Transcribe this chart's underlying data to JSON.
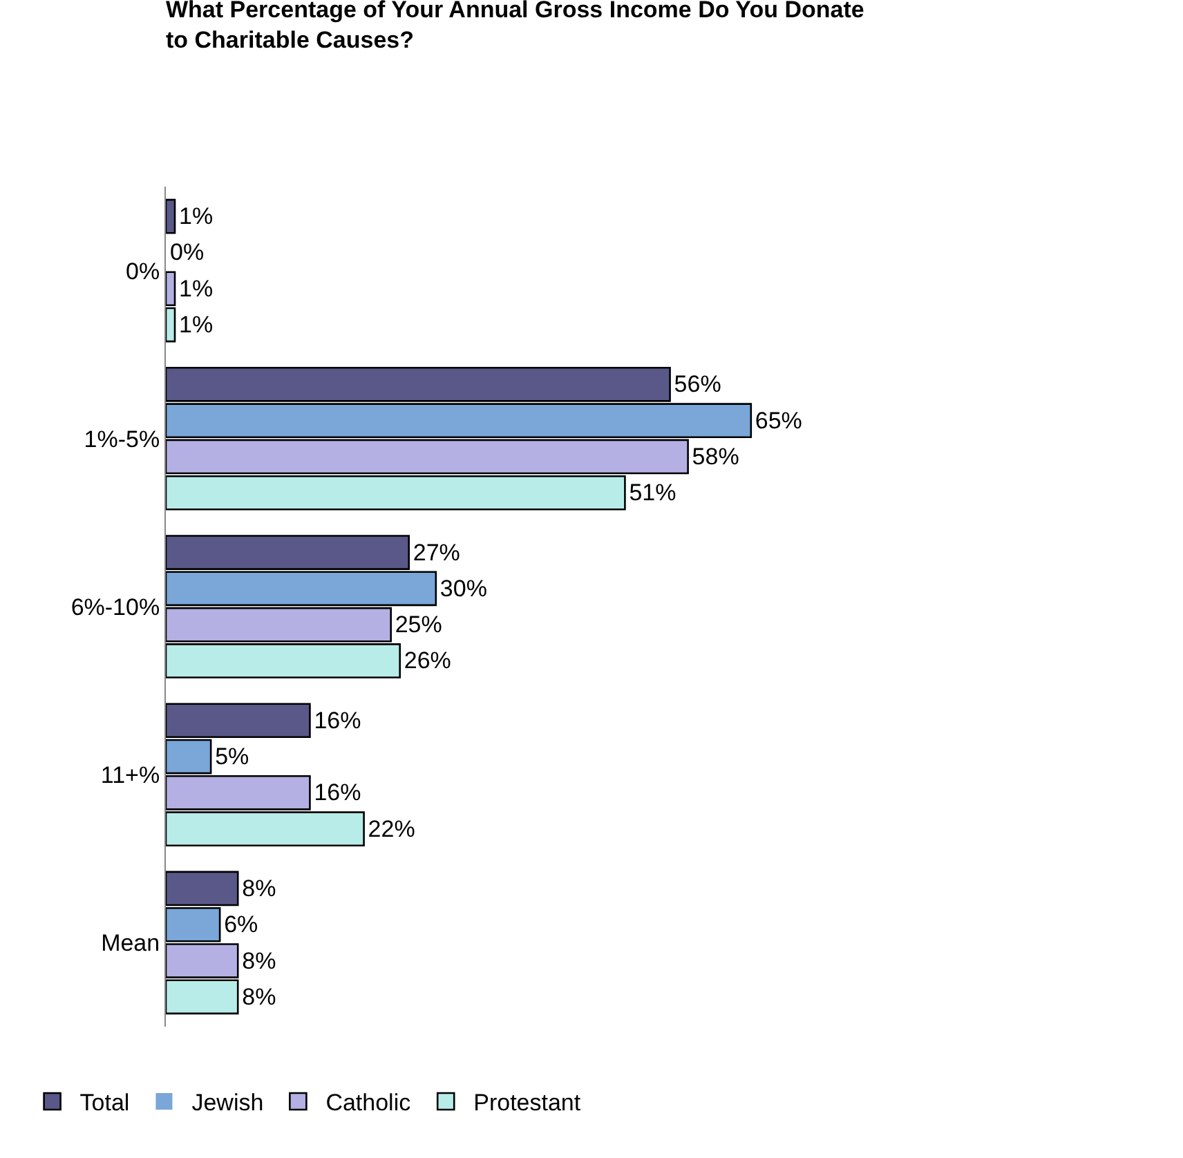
{
  "chart_data": {
    "type": "bar",
    "orientation": "horizontal",
    "title": "What Percentage of Your Annual Gross Income Do You Donate to Charitable Causes?",
    "categories": [
      "0%",
      "1%-5%",
      "6%-10%",
      "11+%",
      "Mean"
    ],
    "tick_labels": "y",
    "grid": false,
    "legend": "bottom left",
    "series": [
      {
        "name": "Total",
        "color": "#5a5888",
        "values": [
          1,
          56,
          27,
          16,
          8
        ],
        "value_labels": [
          "1%",
          "56%",
          "27%",
          "16%",
          "8%"
        ]
      },
      {
        "name": "Jewish",
        "color": "#7aa6d8",
        "values": [
          0,
          65,
          30,
          5,
          6
        ],
        "value_labels": [
          "0%",
          "65%",
          "30%",
          "5%",
          "6%"
        ]
      },
      {
        "name": "Catholic",
        "color": "#b4b0e4",
        "values": [
          1,
          58,
          25,
          16,
          8
        ],
        "value_labels": [
          "1%",
          "58%",
          "25%",
          "16%",
          "8%"
        ]
      },
      {
        "name": "Protestant",
        "color": "#b8ece8",
        "values": [
          1,
          51,
          26,
          22,
          8
        ],
        "value_labels": [
          "1%",
          "51%",
          "26%",
          "22%",
          "8%"
        ]
      }
    ]
  }
}
